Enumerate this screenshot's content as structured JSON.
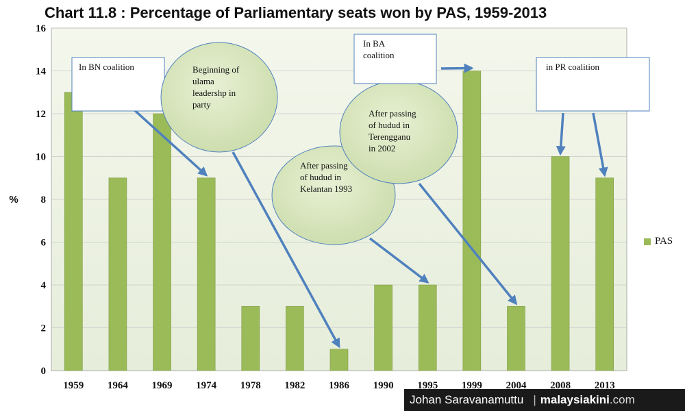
{
  "chart_data": {
    "type": "bar",
    "title": "Chart 11.8 : Percentage of Parliamentary seats won by PAS, 1959-2013",
    "xlabel": "",
    "ylabel": "%",
    "ylim": [
      0,
      16
    ],
    "yticks": [
      0,
      2,
      4,
      6,
      8,
      10,
      12,
      14,
      16
    ],
    "grid": true,
    "legend_position": "right",
    "categories": [
      "1959",
      "1964",
      "1969",
      "1974",
      "1978",
      "1982",
      "1986",
      "1990",
      "1995",
      "1999",
      "2004",
      "2008",
      "2013"
    ],
    "series": [
      {
        "name": "PAS",
        "color": "#9bbb59",
        "values": [
          13,
          9,
          12,
          9,
          3,
          3,
          1,
          4,
          4,
          14,
          3,
          10,
          9
        ]
      }
    ],
    "annotations": [
      {
        "id": "bn",
        "shape": "box",
        "lines": [
          "In  BN coalition"
        ],
        "targets": [
          "1974"
        ]
      },
      {
        "id": "ulama",
        "shape": "ellipse",
        "lines": [
          "Beginning of",
          "ulama",
          "leadershp in",
          "party"
        ],
        "targets": [
          "1986"
        ]
      },
      {
        "id": "kelantan",
        "shape": "ellipse",
        "lines": [
          "After passing",
          "of hudud in",
          "Kelantan 1993"
        ],
        "targets": [
          "1995"
        ]
      },
      {
        "id": "terengganu",
        "shape": "ellipse",
        "lines": [
          "After passing",
          "of hudud in",
          "Terengganu",
          "in 2002"
        ],
        "targets": [
          "2004"
        ]
      },
      {
        "id": "ba",
        "shape": "box",
        "lines": [
          "In BA",
          "coalition"
        ],
        "targets": [
          "1999"
        ]
      },
      {
        "id": "pr",
        "shape": "box",
        "lines": [
          "in PR coalition"
        ],
        "targets": [
          "2008",
          "2013"
        ]
      }
    ]
  },
  "credit": {
    "author": "Johan Saravanamuttu",
    "brand": "malaysiakini",
    "domain": ".com"
  }
}
